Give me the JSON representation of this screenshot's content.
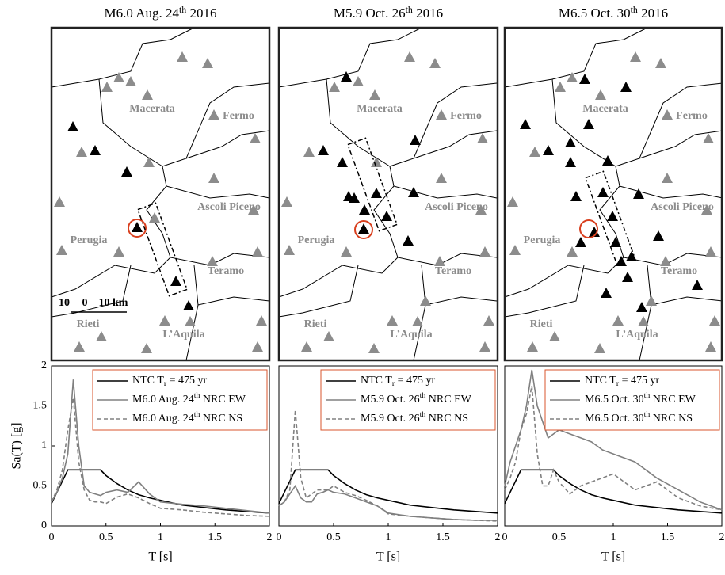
{
  "maps": [
    {
      "title": "M6.0 Aug. 24th 2016",
      "labels": [
        "Macerata",
        "Fermo",
        "Ascoli Piceno",
        "Perugia",
        "Teramo",
        "Rieti",
        "L’Aquila"
      ],
      "scale": [
        "10",
        "0",
        "10 km"
      ]
    },
    {
      "title": "M5.9 Oct. 26th 2016",
      "labels": [
        "Macerata",
        "Fermo",
        "Ascoli Piceno",
        "Perugia",
        "Teramo",
        "Rieti",
        "L’Aquila"
      ]
    },
    {
      "title": "M6.5 Oct. 30th 2016",
      "labels": [
        "Macerata",
        "Fermo",
        "Ascoli Piceno",
        "Perugia",
        "Teramo",
        "Rieti",
        "L’Aquila"
      ]
    }
  ],
  "chart_data": [
    {
      "type": "line",
      "xlabel": "T [s]",
      "ylabel": "Sa(T) [g]",
      "xlim": [
        0,
        2
      ],
      "ylim": [
        0,
        2
      ],
      "xticks": [
        0,
        0.5,
        1,
        1.5,
        2
      ],
      "yticks": [
        0,
        0.5,
        1,
        1.5,
        2
      ],
      "legend": "upper right",
      "legend_border": "#d9542c",
      "x": [
        0,
        0.05,
        0.1,
        0.15,
        0.2,
        0.25,
        0.3,
        0.35,
        0.4,
        0.45,
        0.5,
        0.6,
        0.7,
        0.8,
        0.9,
        1,
        1.2,
        1.4,
        1.6,
        1.8,
        2
      ],
      "series": [
        {
          "name": "NTC Tr = 475 yr",
          "color": "#000000",
          "linestyle": "solid",
          "values": [
            0.28,
            0.42,
            0.56,
            0.7,
            0.7,
            0.7,
            0.7,
            0.7,
            0.7,
            0.7,
            0.63,
            0.53,
            0.45,
            0.39,
            0.35,
            0.32,
            0.26,
            0.23,
            0.2,
            0.18,
            0.16
          ]
        },
        {
          "name": "M6.0 Aug. 24th NRC EW",
          "color": "#808080",
          "linestyle": "solid",
          "values": [
            0.3,
            0.42,
            0.6,
            0.9,
            1.83,
            1.0,
            0.5,
            0.42,
            0.4,
            0.38,
            0.42,
            0.45,
            0.42,
            0.55,
            0.4,
            0.3,
            0.27,
            0.25,
            0.22,
            0.19,
            0.16
          ]
        },
        {
          "name": "M6.0 Aug. 24th NRC NS",
          "color": "#808080",
          "linestyle": "dashed",
          "values": [
            0.3,
            0.45,
            0.7,
            1.2,
            1.6,
            0.8,
            0.45,
            0.32,
            0.3,
            0.3,
            0.28,
            0.36,
            0.4,
            0.35,
            0.28,
            0.22,
            0.2,
            0.17,
            0.15,
            0.13,
            0.12
          ]
        }
      ]
    },
    {
      "type": "line",
      "xlabel": "T [s]",
      "xlim": [
        0,
        2
      ],
      "ylim": [
        0,
        2
      ],
      "xticks": [
        0,
        0.5,
        1,
        1.5,
        2
      ],
      "legend": "upper right",
      "legend_border": "#d9542c",
      "x": [
        0,
        0.05,
        0.1,
        0.15,
        0.2,
        0.25,
        0.3,
        0.35,
        0.4,
        0.45,
        0.5,
        0.6,
        0.7,
        0.8,
        0.9,
        1,
        1.2,
        1.4,
        1.6,
        1.8,
        2
      ],
      "series": [
        {
          "name": "NTC Tr = 475 yr",
          "color": "#000000",
          "linestyle": "solid",
          "values": [
            0.28,
            0.42,
            0.56,
            0.7,
            0.7,
            0.7,
            0.7,
            0.7,
            0.7,
            0.7,
            0.63,
            0.53,
            0.45,
            0.39,
            0.35,
            0.32,
            0.26,
            0.23,
            0.2,
            0.18,
            0.16
          ]
        },
        {
          "name": "M5.9 Oct. 26th NRC EW",
          "color": "#808080",
          "linestyle": "solid",
          "values": [
            0.25,
            0.3,
            0.4,
            0.5,
            0.35,
            0.3,
            0.3,
            0.4,
            0.42,
            0.45,
            0.42,
            0.4,
            0.35,
            0.3,
            0.25,
            0.16,
            0.12,
            0.1,
            0.08,
            0.07,
            0.07
          ]
        },
        {
          "name": "M5.9 Oct. 26th NRC NS",
          "color": "#808080",
          "linestyle": "dashed",
          "values": [
            0.25,
            0.3,
            0.45,
            1.45,
            0.6,
            0.35,
            0.4,
            0.45,
            0.45,
            0.45,
            0.5,
            0.42,
            0.38,
            0.32,
            0.25,
            0.15,
            0.12,
            0.1,
            0.08,
            0.07,
            0.06
          ]
        }
      ]
    },
    {
      "type": "line",
      "xlabel": "T [s]",
      "xlim": [
        0,
        2
      ],
      "ylim": [
        0,
        2
      ],
      "xticks": [
        0,
        0.5,
        1,
        1.5,
        2
      ],
      "legend": "upper right",
      "legend_border": "#d9542c",
      "x": [
        0,
        0.05,
        0.1,
        0.15,
        0.2,
        0.25,
        0.3,
        0.35,
        0.4,
        0.45,
        0.5,
        0.6,
        0.7,
        0.8,
        0.9,
        1,
        1.2,
        1.4,
        1.6,
        1.8,
        2
      ],
      "series": [
        {
          "name": "NTC Tr = 475 yr",
          "color": "#000000",
          "linestyle": "solid",
          "values": [
            0.28,
            0.42,
            0.56,
            0.7,
            0.7,
            0.7,
            0.7,
            0.7,
            0.7,
            0.7,
            0.63,
            0.53,
            0.45,
            0.39,
            0.35,
            0.32,
            0.26,
            0.23,
            0.2,
            0.18,
            0.16
          ]
        },
        {
          "name": "M6.5 Oct. 30th NRC EW",
          "color": "#808080",
          "linestyle": "solid",
          "values": [
            0.5,
            0.8,
            1.0,
            1.2,
            1.5,
            1.95,
            1.5,
            1.3,
            1.1,
            1.15,
            1.2,
            1.15,
            1.1,
            1.05,
            0.95,
            0.9,
            0.8,
            0.6,
            0.45,
            0.3,
            0.2
          ]
        },
        {
          "name": "M6.5 Oct. 30th NRC NS",
          "color": "#808080",
          "linestyle": "dashed",
          "values": [
            0.45,
            0.6,
            0.8,
            1.2,
            1.4,
            1.75,
            0.9,
            0.5,
            0.5,
            0.7,
            0.55,
            0.4,
            0.5,
            0.55,
            0.6,
            0.65,
            0.45,
            0.55,
            0.35,
            0.25,
            0.2
          ]
        }
      ]
    }
  ]
}
